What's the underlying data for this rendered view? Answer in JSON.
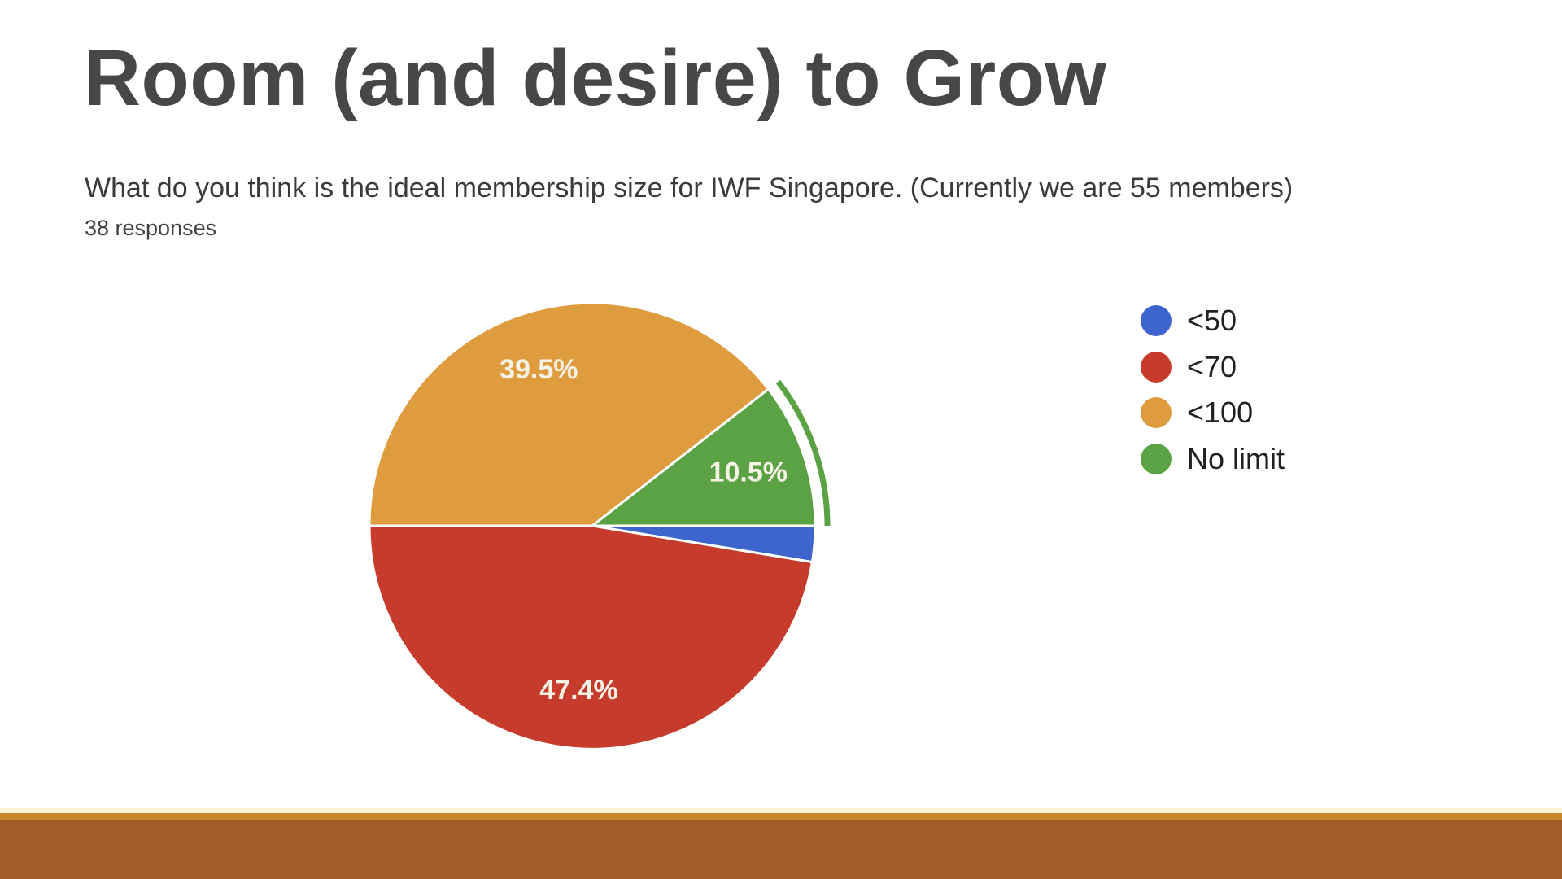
{
  "slide": {
    "title": "Room (and desire) to Grow",
    "question": "What do you think is the ideal membership size for IWF Singapore. (Currently we are 55 members)",
    "responses_label": "38 responses"
  },
  "chart_data": {
    "type": "pie",
    "title": "What do you think is the ideal membership size for IWF Singapore. (Currently we are 55 members)",
    "subtitle": "38 responses",
    "legend_position": "right",
    "start_angle_deg": 180,
    "direction": "clockwise",
    "draw_order": [
      2,
      3,
      0,
      1
    ],
    "label_color": "#F7F2E6",
    "slices": [
      {
        "label": "<50",
        "pct": 2.6,
        "pct_label": "",
        "color": "#3E64CE",
        "highlighted": false
      },
      {
        "label": "<70",
        "pct": 47.4,
        "pct_label": "47.4%",
        "color": "#C63B2B",
        "highlighted": false
      },
      {
        "label": "<100",
        "pct": 39.5,
        "pct_label": "39.5%",
        "color": "#DE9C3E",
        "highlighted": false
      },
      {
        "label": "No limit",
        "pct": 10.5,
        "pct_label": "10.5%",
        "color": "#5BA245",
        "highlighted": true
      }
    ]
  },
  "footer": {
    "stripe_cream": "#F8F4D8",
    "stripe_gold": "#C8892C",
    "band_rust": "#A45C2C"
  }
}
